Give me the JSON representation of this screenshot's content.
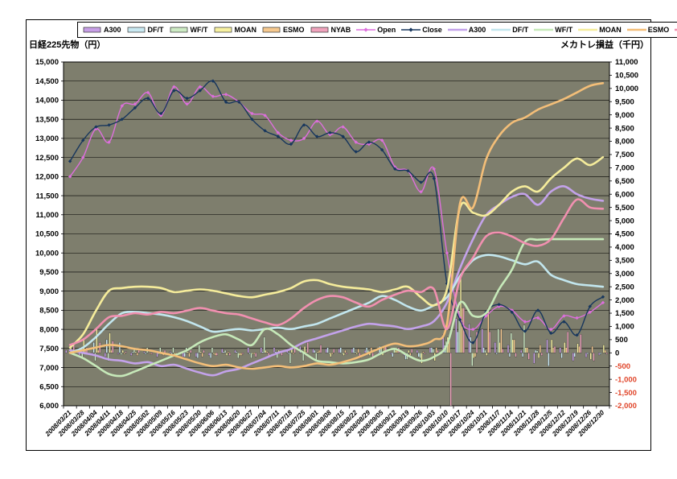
{
  "titles": {
    "left_axis": "日経225先物（円）",
    "right_axis": "メカトレ損益（千円）"
  },
  "legend": [
    {
      "label": "A300",
      "type": "bar",
      "color": "#C79FE6"
    },
    {
      "label": "DF/T",
      "type": "bar",
      "color": "#C9E9F2"
    },
    {
      "label": "WF/T",
      "type": "bar",
      "color": "#CDEBC4"
    },
    {
      "label": "MOAN",
      "type": "bar",
      "color": "#F7F1A0"
    },
    {
      "label": "ESMO",
      "type": "bar",
      "color": "#F6C98F"
    },
    {
      "label": "NYAB",
      "type": "bar",
      "color": "#EFA3BC"
    },
    {
      "label": "Open",
      "type": "line-marker",
      "color": "#DD6FDD"
    },
    {
      "label": "Close",
      "type": "line-marker",
      "color": "#17365D"
    },
    {
      "label": "A300",
      "type": "line",
      "color": "#C3A2EA"
    },
    {
      "label": "DF/T",
      "type": "line",
      "color": "#C2E6EE"
    },
    {
      "label": "WF/T",
      "type": "line",
      "color": "#C6E9B9"
    },
    {
      "label": "MOAN",
      "type": "line",
      "color": "#F5EC9B"
    },
    {
      "label": "ESMO",
      "type": "line",
      "color": "#F3BE78"
    },
    {
      "label": "NYAB",
      "type": "line",
      "color": "#F190B0"
    }
  ],
  "chart_data": {
    "type": "combo bar+line, dual axis (weekly samples of daily data)",
    "plot_bg": "#7E7E6D",
    "grid_color": "#000000",
    "categories": [
      "2008/03/21",
      "2008/03/28",
      "2008/04/04",
      "2008/04/11",
      "2008/04/18",
      "2008/04/25",
      "2008/05/02",
      "2008/05/09",
      "2008/05/16",
      "2008/05/23",
      "2008/05/30",
      "2008/06/06",
      "2008/06/13",
      "2008/06/20",
      "2008/06/27",
      "2008/07/04",
      "2008/07/11",
      "2008/07/18",
      "2008/07/25",
      "2008/08/01",
      "2008/08/08",
      "2008/08/15",
      "2008/08/22",
      "2008/08/29",
      "2008/09/05",
      "2008/09/12",
      "2008/09/19",
      "2008/09/26",
      "2008/10/03",
      "2008/10/10",
      "2008/10/17",
      "2008/10/24",
      "2008/10/31",
      "2008/11/7",
      "2008/11/14",
      "2008/11/21",
      "2008/11/28",
      "2008/12/5",
      "2008/12/12",
      "2008/12/19",
      "2008/12/26",
      "2008/12/30"
    ],
    "left_axis": {
      "min": 6000,
      "max": 15000,
      "step": 500,
      "label_color": "#000000"
    },
    "right_axis": {
      "min": -2000,
      "max": 11000,
      "step": 500,
      "label_color": "#000000",
      "negative_label_color": "#E0452A"
    },
    "line_series": [
      {
        "name": "Open",
        "axis": "left",
        "color": "#DD6FDD",
        "width": 1.4,
        "marker": true,
        "values": [
          12000,
          12500,
          13250,
          12900,
          13850,
          13900,
          14200,
          13600,
          14350,
          13900,
          14350,
          14100,
          14150,
          13950,
          13650,
          13600,
          13150,
          12950,
          13000,
          13450,
          13100,
          13300,
          12900,
          12850,
          12950,
          12250,
          12150,
          11600,
          12200,
          10000,
          8300,
          8000,
          8350,
          8600,
          8500,
          8200,
          8300,
          8000,
          8350,
          8300,
          8450,
          8700
        ]
      },
      {
        "name": "Close",
        "axis": "left",
        "color": "#17365D",
        "width": 1.4,
        "marker": true,
        "values": [
          12400,
          12950,
          13300,
          13350,
          13500,
          13800,
          14050,
          13650,
          14250,
          14050,
          14250,
          14500,
          13950,
          13950,
          13500,
          13200,
          13050,
          12850,
          13350,
          13050,
          13150,
          13050,
          12650,
          12900,
          12700,
          12200,
          12150,
          11850,
          11950,
          9200,
          8250,
          7650,
          8450,
          8650,
          8450,
          7950,
          8500,
          7900,
          8200,
          7850,
          8600,
          8850
        ]
      },
      {
        "name": "A300",
        "axis": "right",
        "color": "#C3A2EA",
        "width": 2.6,
        "marker": false,
        "values": [
          100,
          0,
          -100,
          -250,
          -300,
          -400,
          -350,
          -500,
          -450,
          -600,
          -750,
          -850,
          -700,
          -600,
          -400,
          -200,
          0,
          150,
          400,
          550,
          700,
          850,
          1000,
          1100,
          1050,
          1000,
          900,
          1000,
          1200,
          1900,
          3200,
          4300,
          5200,
          5600,
          5900,
          6000,
          5600,
          6100,
          6300,
          6000,
          5830,
          5750
        ]
      },
      {
        "name": "DF/T",
        "axis": "right",
        "color": "#C2E6EE",
        "width": 2.6,
        "marker": false,
        "values": [
          0,
          200,
          600,
          1100,
          1500,
          1550,
          1500,
          1450,
          1350,
          1200,
          1000,
          800,
          850,
          900,
          850,
          900,
          950,
          900,
          1000,
          1100,
          1300,
          1500,
          1700,
          1900,
          2150,
          2000,
          1750,
          1600,
          1800,
          2100,
          2900,
          3500,
          3700,
          3650,
          3500,
          3350,
          3450,
          2950,
          2750,
          2600,
          2550,
          2500
        ]
      },
      {
        "name": "WF/T",
        "axis": "right",
        "color": "#C6E9B9",
        "width": 2.6,
        "marker": false,
        "values": [
          0,
          -200,
          -500,
          -800,
          -870,
          -700,
          -500,
          -300,
          -100,
          100,
          400,
          600,
          700,
          500,
          300,
          900,
          700,
          300,
          0,
          -300,
          -350,
          -400,
          -350,
          -250,
          0,
          150,
          -100,
          -300,
          -150,
          300,
          1900,
          1400,
          1500,
          2400,
          3150,
          4200,
          4280,
          4300,
          4300,
          4300,
          4300,
          4300
        ]
      },
      {
        "name": "MOAN",
        "axis": "right",
        "color": "#F5EC9B",
        "width": 2.6,
        "marker": false,
        "values": [
          200,
          700,
          1600,
          2350,
          2450,
          2500,
          2500,
          2450,
          2300,
          2350,
          2400,
          2350,
          2250,
          2150,
          2100,
          2200,
          2300,
          2450,
          2700,
          2750,
          2600,
          2500,
          2450,
          2400,
          2300,
          2400,
          2500,
          2100,
          1800,
          2400,
          5500,
          5300,
          5200,
          5600,
          6100,
          6300,
          6100,
          6600,
          7000,
          7350,
          7100,
          7400
        ]
      },
      {
        "name": "ESMO",
        "axis": "right",
        "color": "#F3BE78",
        "width": 2.6,
        "marker": false,
        "values": [
          0,
          100,
          200,
          300,
          250,
          150,
          100,
          0,
          -100,
          -250,
          -400,
          -500,
          -450,
          -550,
          -600,
          -550,
          -500,
          -550,
          -500,
          -400,
          -450,
          -350,
          -200,
          0,
          200,
          350,
          250,
          300,
          500,
          1100,
          5650,
          5500,
          7300,
          8200,
          8700,
          8900,
          9200,
          9400,
          9600,
          9850,
          10100,
          10200
        ]
      },
      {
        "name": "NYAB",
        "axis": "right",
        "color": "#F190B0",
        "width": 2.6,
        "marker": false,
        "values": [
          300,
          500,
          900,
          1350,
          1400,
          1500,
          1450,
          1550,
          1500,
          1600,
          1700,
          1600,
          1500,
          1450,
          1300,
          1150,
          1050,
          1300,
          1700,
          2000,
          2150,
          2100,
          1900,
          1750,
          2000,
          2200,
          2350,
          2300,
          2400,
          900,
          2800,
          3600,
          4400,
          4550,
          4400,
          4150,
          4050,
          4300,
          5100,
          5800,
          5500,
          5450
        ]
      }
    ],
    "bar_series": [
      {
        "name": "A300",
        "axis": "right",
        "color": "#C79FE6",
        "values": [
          100,
          -100,
          -100,
          -150,
          -50,
          -100,
          50,
          -150,
          50,
          -150,
          -150,
          -100,
          150,
          100,
          200,
          200,
          200,
          150,
          250,
          150,
          150,
          150,
          150,
          100,
          -50,
          -50,
          -100,
          100,
          200,
          700,
          1300,
          1100,
          900,
          400,
          300,
          100,
          -400,
          500,
          200,
          -300,
          -170,
          -80
        ]
      },
      {
        "name": "DF/T",
        "axis": "right",
        "color": "#C9E9F2",
        "values": [
          0,
          200,
          400,
          500,
          400,
          50,
          -50,
          -50,
          -100,
          -150,
          -200,
          -200,
          50,
          50,
          -50,
          50,
          50,
          -50,
          100,
          100,
          200,
          200,
          200,
          200,
          250,
          -150,
          -250,
          -150,
          200,
          300,
          800,
          600,
          200,
          -50,
          -150,
          -150,
          100,
          -500,
          -200,
          -150,
          -50,
          -50
        ]
      },
      {
        "name": "WF/T",
        "axis": "right",
        "color": "#CDEBC4",
        "values": [
          0,
          -200,
          -300,
          -300,
          -70,
          170,
          200,
          200,
          200,
          200,
          300,
          200,
          100,
          -200,
          -200,
          600,
          -200,
          -400,
          -300,
          -300,
          -50,
          -50,
          50,
          100,
          250,
          150,
          -250,
          -200,
          150,
          450,
          1600,
          -500,
          100,
          900,
          750,
          1050,
          80,
          20,
          0,
          0,
          0,
          0
        ]
      },
      {
        "name": "MOAN",
        "axis": "right",
        "color": "#F7F1A0",
        "values": [
          200,
          500,
          900,
          750,
          100,
          50,
          0,
          -50,
          -150,
          50,
          50,
          -50,
          -100,
          -100,
          -50,
          100,
          100,
          150,
          250,
          50,
          -150,
          -100,
          -50,
          -100,
          -100,
          100,
          100,
          -400,
          -300,
          600,
          3000,
          -200,
          -100,
          400,
          500,
          200,
          -200,
          500,
          400,
          350,
          -250,
          300
        ]
      },
      {
        "name": "ESMO",
        "axis": "right",
        "color": "#F6C98F",
        "values": [
          0,
          100,
          100,
          100,
          -50,
          -100,
          -50,
          -100,
          -100,
          -150,
          -150,
          -100,
          50,
          -100,
          -50,
          50,
          50,
          -50,
          50,
          100,
          -50,
          100,
          150,
          200,
          200,
          150,
          -100,
          50,
          200,
          600,
          1700,
          -150,
          1700,
          900,
          500,
          200,
          300,
          200,
          200,
          250,
          250,
          100
        ]
      },
      {
        "name": "NYAB",
        "axis": "right",
        "color": "#EFA3BC",
        "values": [
          300,
          200,
          400,
          450,
          50,
          100,
          -50,
          100,
          -50,
          100,
          100,
          -100,
          -100,
          -50,
          -150,
          -150,
          -100,
          250,
          400,
          300,
          150,
          -50,
          -200,
          -150,
          250,
          200,
          150,
          -50,
          100,
          -2000,
          1700,
          800,
          800,
          150,
          -150,
          -250,
          -100,
          250,
          800,
          700,
          -300,
          -50
        ]
      }
    ]
  }
}
